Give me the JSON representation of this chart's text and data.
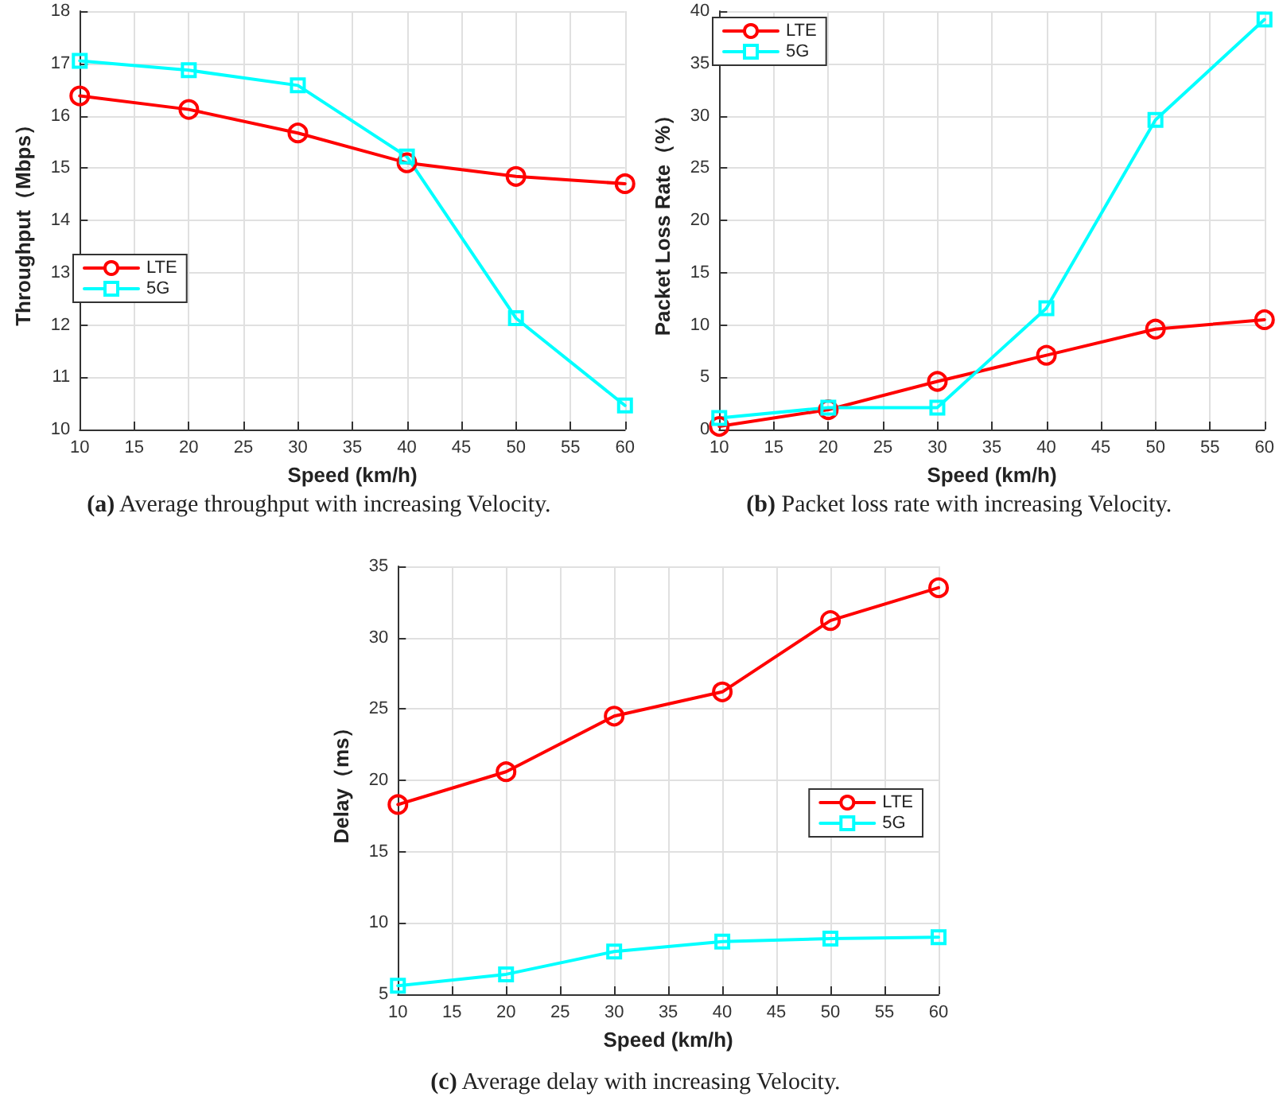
{
  "chart_data": [
    {
      "type": "line",
      "title": "(a) Average throughput with increasing Velocity.",
      "xlabel": "Speed (km/h)",
      "ylabel": "Throughput（Mbps）",
      "x": [
        10,
        20,
        30,
        40,
        50,
        60
      ],
      "xlim": [
        10,
        60
      ],
      "xticks": [
        10,
        15,
        20,
        25,
        30,
        35,
        40,
        45,
        50,
        55,
        60
      ],
      "ylim": [
        10,
        18
      ],
      "yticks": [
        10,
        11,
        12,
        13,
        14,
        15,
        16,
        17,
        18
      ],
      "grid": true,
      "legend": "bottom left",
      "line_style": "solid",
      "series": [
        {
          "name": "LTE",
          "color": "#ff0000",
          "marker": "circle",
          "values": [
            16.38,
            16.12,
            15.67,
            15.1,
            14.84,
            14.7
          ]
        },
        {
          "name": "5G",
          "color": "#00ffff",
          "marker": "square",
          "values": [
            17.05,
            16.87,
            16.58,
            15.22,
            12.13,
            10.46
          ]
        }
      ]
    },
    {
      "type": "line",
      "title": "(b) Packet loss rate with increasing Velocity.",
      "xlabel": "Speed (km/h)",
      "ylabel": "Packet Loss Rate（%）",
      "x": [
        10,
        20,
        30,
        40,
        50,
        60
      ],
      "xlim": [
        10,
        60
      ],
      "xticks": [
        10,
        15,
        20,
        25,
        30,
        35,
        40,
        45,
        50,
        55,
        60
      ],
      "ylim": [
        0,
        40
      ],
      "yticks": [
        0,
        5,
        10,
        15,
        20,
        25,
        30,
        35,
        40
      ],
      "grid": true,
      "legend": "top left",
      "line_style": "solid",
      "series": [
        {
          "name": "LTE",
          "color": "#ff0000",
          "marker": "circle",
          "values": [
            0.3,
            1.9,
            4.6,
            7.1,
            9.6,
            10.5
          ]
        },
        {
          "name": "5G",
          "color": "#00ffff",
          "marker": "square",
          "values": [
            1.1,
            2.1,
            2.1,
            11.6,
            29.6,
            39.2
          ]
        }
      ]
    },
    {
      "type": "line",
      "title": "(c) Average delay with increasing Velocity.",
      "xlabel": "Speed (km/h)",
      "ylabel": "Delay（ms）",
      "x": [
        10,
        20,
        30,
        40,
        50,
        60
      ],
      "xlim": [
        10,
        60
      ],
      "xticks": [
        10,
        15,
        20,
        25,
        30,
        35,
        40,
        45,
        50,
        55,
        60
      ],
      "ylim": [
        5,
        35
      ],
      "yticks": [
        5,
        10,
        15,
        20,
        25,
        30,
        35
      ],
      "grid": true,
      "legend": "right",
      "line_style": "solid",
      "series": [
        {
          "name": "LTE",
          "color": "#ff0000",
          "marker": "circle",
          "values": [
            18.3,
            20.6,
            24.5,
            26.2,
            31.2,
            33.5
          ]
        },
        {
          "name": "5G",
          "color": "#00ffff",
          "marker": "square",
          "values": [
            5.6,
            6.4,
            8.0,
            8.7,
            8.9,
            9.0
          ]
        }
      ]
    }
  ]
}
